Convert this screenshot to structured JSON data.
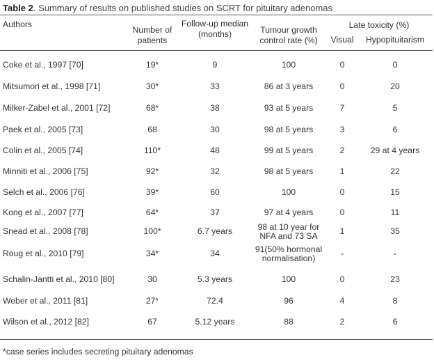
{
  "caption": {
    "label": "Table 2",
    "text": ". Summary of results on published studies on SCRT for  pituitary adenomas"
  },
  "headers": {
    "authors": "Authors",
    "patients": "Number of patients",
    "followup": "Follow-up median (months)",
    "control": "Tumour growth control rate (%)",
    "late_toxicity": "Late toxicity (%)",
    "visual": "Visual",
    "hypo": "Hypopituitarism"
  },
  "rows": [
    {
      "author": "Coke et al., 1997 [70]",
      "patients": "19*",
      "followup": "9",
      "control": "100",
      "visual": "0",
      "hypo": "0"
    },
    {
      "author": "Mitsumori et al., 1998 [71]",
      "patients": "30*",
      "followup": "33",
      "control": "86 at 3 years",
      "visual": "0",
      "hypo": "20"
    },
    {
      "author": "Milker-Zabel et al., 2001 [72]",
      "patients": "68*",
      "followup": "38",
      "control": "93 at 5 years",
      "visual": "7",
      "hypo": "5"
    },
    {
      "author": "Paek et al., 2005 [73]",
      "patients": "68",
      "followup": "30",
      "control": "98 at 5 years",
      "visual": "3",
      "hypo": "6"
    },
    {
      "author": "Colin et al., 2005 [74]",
      "patients": "110*",
      "followup": "48",
      "control": "99 at 5 years",
      "visual": "2",
      "hypo": "29 at 4 years"
    },
    {
      "author": "Minniti et al., 2006 [75]",
      "patients": "92*",
      "followup": "32",
      "control": "98 at 5 years",
      "visual": "1",
      "hypo": "22"
    },
    {
      "author": "Selch et al., 2006 [76]",
      "patients": "39*",
      "followup": "60",
      "control": "100",
      "visual": "0",
      "hypo": "15"
    },
    {
      "author": "Kong et al., 2007 [77]",
      "patients": "64*",
      "followup": "37",
      "control": "97 at 4 years",
      "visual": "0",
      "hypo": "11"
    },
    {
      "author": "Snead et al., 2008 [78]",
      "patients": "100*",
      "followup": "6.7 years",
      "control": "98 at 10 year for NFA and 73 SA",
      "visual": "1",
      "hypo": "35"
    },
    {
      "author": "Roug et al., 2010 [79]",
      "patients": "34*",
      "followup": "34",
      "control": "91(50% hormonal normalisation)",
      "visual": "-",
      "hypo": "-"
    },
    {
      "author": "Schalin-Jantti et al., 2010 [80]",
      "patients": "30",
      "followup": "5.3 years",
      "control": "100",
      "visual": "0",
      "hypo": "23"
    },
    {
      "author": "Weber et al., 2011 [81]",
      "patients": "27*",
      "followup": "72.4",
      "control": "96",
      "visual": "4",
      "hypo": "8"
    },
    {
      "author": "Wilson et al., 2012 [82]",
      "patients": "67",
      "followup": "5.12 years",
      "control": "88",
      "visual": "2",
      "hypo": "6"
    }
  ],
  "footnote": "*case series includes secreting pituitary adenomas"
}
